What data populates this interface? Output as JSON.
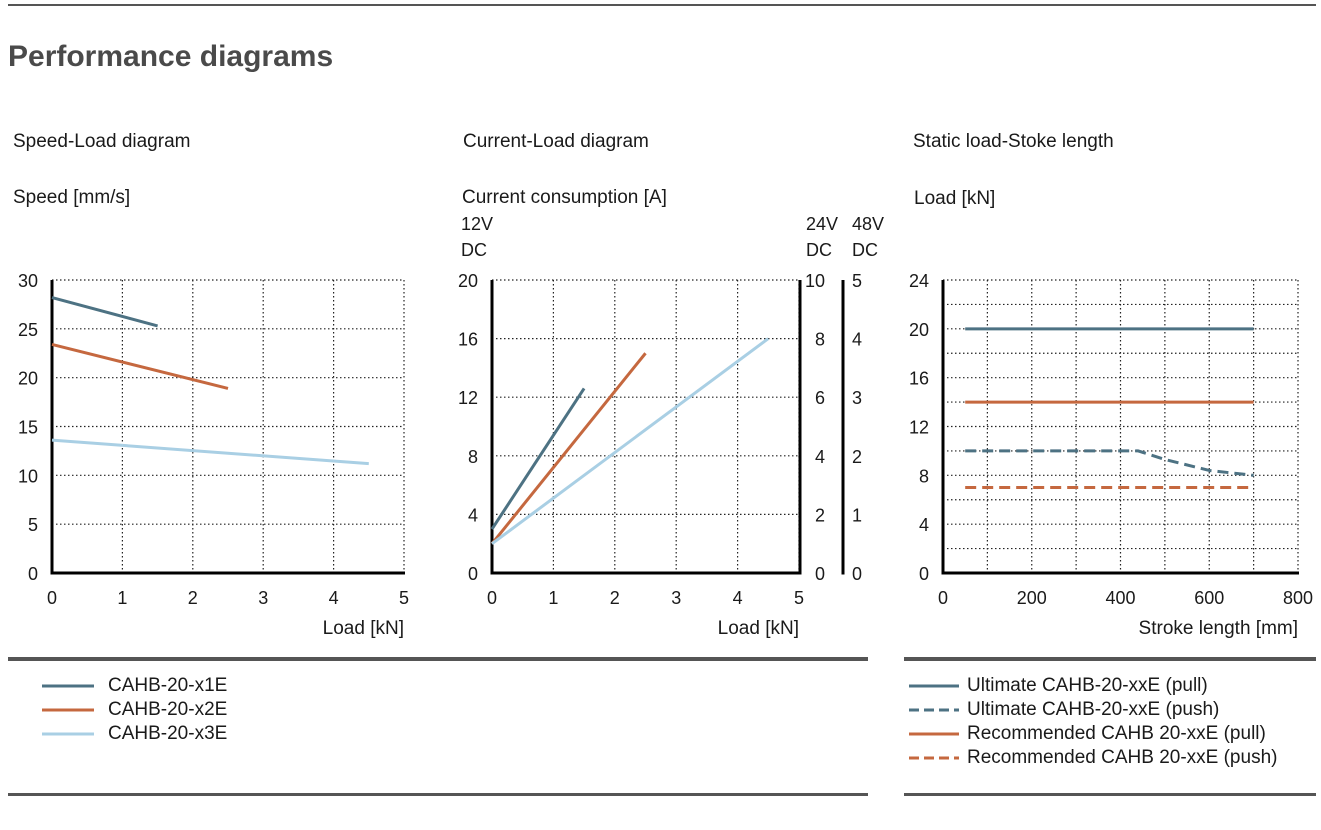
{
  "page": {
    "title": "Performance diagrams"
  },
  "colors": {
    "x1": "#4d7283",
    "x2": "#c5683f",
    "x3": "#a9cfe4",
    "rule": "#555555",
    "axis": "#000000"
  },
  "chart_data": [
    {
      "type": "line",
      "title": "Speed-Load diagram",
      "ylabel": "Speed [mm/s]",
      "xlabel": "Load [kN]",
      "xlim": [
        0,
        5
      ],
      "ylim": [
        0,
        30
      ],
      "xticks": [
        0,
        1,
        2,
        3,
        4,
        5
      ],
      "yticks": [
        0,
        5,
        10,
        15,
        20,
        25,
        30
      ],
      "grid": true,
      "series": [
        {
          "name": "CAHB-20-x1E",
          "color": "#4d7283",
          "dashed": false,
          "x": [
            0,
            1.5
          ],
          "y": [
            28.2,
            25.3
          ]
        },
        {
          "name": "CAHB-20-x2E",
          "color": "#c5683f",
          "dashed": false,
          "x": [
            0,
            2.5
          ],
          "y": [
            23.4,
            18.9
          ]
        },
        {
          "name": "CAHB-20-x3E",
          "color": "#a9cfe4",
          "dashed": false,
          "x": [
            0,
            4.5
          ],
          "y": [
            13.6,
            11.2
          ]
        }
      ]
    },
    {
      "type": "line",
      "title": "Current-Load diagram",
      "ylabel": "Current consumption [A]",
      "xlabel": "Load [kN]",
      "xlim": [
        0,
        5
      ],
      "ylim": [
        0,
        20
      ],
      "xticks": [
        0,
        1,
        2,
        3,
        4,
        5
      ],
      "yticks": [
        0,
        4,
        8,
        12,
        16,
        20
      ],
      "yticks_24v": [
        0,
        2,
        4,
        6,
        8,
        10
      ],
      "yticks_48v": [
        0,
        1,
        2,
        3,
        4,
        5
      ],
      "axis_units": {
        "left": [
          "12V",
          "DC"
        ],
        "right1": [
          "24V",
          "DC"
        ],
        "right2": [
          "48V",
          "DC"
        ]
      },
      "grid": true,
      "series": [
        {
          "name": "CAHB-20-x1E",
          "color": "#4d7283",
          "dashed": false,
          "x": [
            0,
            1.5
          ],
          "y": [
            3.0,
            12.6
          ]
        },
        {
          "name": "CAHB-20-x2E",
          "color": "#c5683f",
          "dashed": false,
          "x": [
            0,
            2.5
          ],
          "y": [
            2.0,
            15.0
          ]
        },
        {
          "name": "CAHB-20-x3E",
          "color": "#a9cfe4",
          "dashed": false,
          "x": [
            0,
            4.5
          ],
          "y": [
            2.0,
            16.0
          ]
        }
      ]
    },
    {
      "type": "line",
      "title": "Static load-Stoke length",
      "ylabel": "Load [kN]",
      "xlabel": "Stroke length [mm]",
      "xlim": [
        0,
        800
      ],
      "ylim": [
        0,
        24
      ],
      "xticks": [
        0,
        200,
        400,
        600,
        800
      ],
      "yticks": [
        0,
        4,
        8,
        12,
        16,
        20,
        24
      ],
      "grid": true,
      "series": [
        {
          "name": "Ultimate CAHB-20-xxE (pull)",
          "color": "#4d7283",
          "dashed": false,
          "x": [
            50,
            700
          ],
          "y": [
            20,
            20
          ]
        },
        {
          "name": "Recommended CAHB 20-xxE (pull)",
          "color": "#c5683f",
          "dashed": false,
          "x": [
            50,
            700
          ],
          "y": [
            14,
            14
          ]
        },
        {
          "name": "Ultimate CAHB-20-xxE (push)",
          "color": "#4d7283",
          "dashed": true,
          "x": [
            50,
            440,
            500,
            600,
            700
          ],
          "y": [
            10,
            10,
            9.3,
            8.4,
            8.0
          ]
        },
        {
          "name": "Recommended CAHB 20-xxE (push)",
          "color": "#c5683f",
          "dashed": true,
          "x": [
            50,
            700
          ],
          "y": [
            7,
            7
          ]
        }
      ]
    }
  ],
  "legends": {
    "left": [
      {
        "label": "CAHB-20-x1E",
        "color": "#4d7283",
        "dashed": false
      },
      {
        "label": "CAHB-20-x2E",
        "color": "#c5683f",
        "dashed": false
      },
      {
        "label": "CAHB-20-x3E",
        "color": "#a9cfe4",
        "dashed": false
      }
    ],
    "right": [
      {
        "label": "Ultimate CAHB-20-xxE (pull)",
        "color": "#4d7283",
        "dashed": false
      },
      {
        "label": "Ultimate CAHB-20-xxE (push)",
        "color": "#4d7283",
        "dashed": true
      },
      {
        "label": "Recommended CAHB 20-xxE (pull)",
        "color": "#c5683f",
        "dashed": false
      },
      {
        "label": "Recommended CAHB 20-xxE (push)",
        "color": "#c5683f",
        "dashed": true
      }
    ]
  }
}
